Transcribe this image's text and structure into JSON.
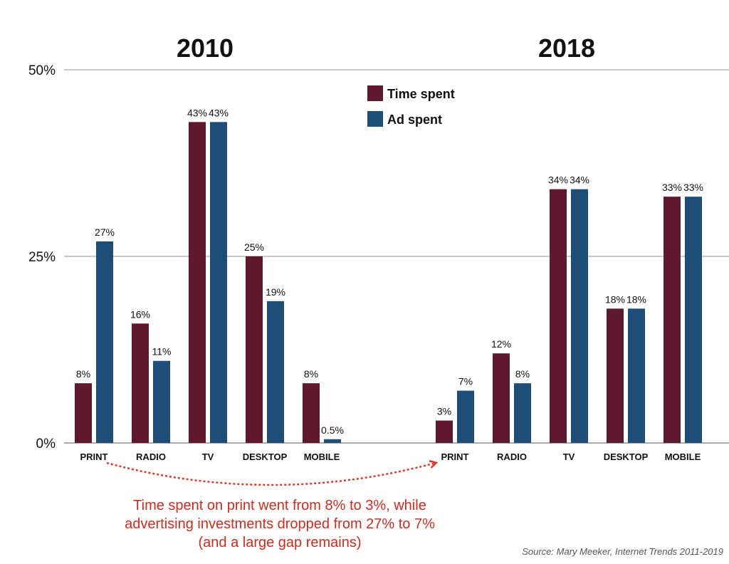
{
  "chart_data": {
    "type": "bar",
    "groups": [
      {
        "title": "2010",
        "categories": [
          "PRINT",
          "RADIO",
          "TV",
          "DESKTOP",
          "MOBILE"
        ],
        "series": [
          {
            "name": "Time spent",
            "values": [
              8,
              16,
              43,
              25,
              8
            ],
            "labels": [
              "8%",
              "16%",
              "43%",
              "25%",
              "8%"
            ]
          },
          {
            "name": "Ad spent",
            "values": [
              27,
              11,
              43,
              19,
              0.5
            ],
            "labels": [
              "27%",
              "11%",
              "43%",
              "19%",
              "0.5%"
            ]
          }
        ]
      },
      {
        "title": "2018",
        "categories": [
          "PRINT",
          "RADIO",
          "TV",
          "DESKTOP",
          "MOBILE"
        ],
        "series": [
          {
            "name": "Time spent",
            "values": [
              3,
              12,
              34,
              18,
              33
            ],
            "labels": [
              "3%",
              "12%",
              "34%",
              "18%",
              "33%"
            ]
          },
          {
            "name": "Ad spent",
            "values": [
              7,
              8,
              34,
              18,
              33
            ],
            "labels": [
              "7%",
              "8%",
              "34%",
              "18%",
              "33%"
            ]
          }
        ]
      }
    ],
    "ylim": [
      0,
      50
    ],
    "yticks": [
      {
        "value": 0,
        "label": "0%"
      },
      {
        "value": 25,
        "label": "25%"
      },
      {
        "value": 50,
        "label": "50%"
      }
    ],
    "grid": true,
    "legend": {
      "placement": "top-center",
      "entries": [
        "Time spent",
        "Ad spent"
      ]
    },
    "series_colors": [
      "#5e1a2c",
      "#1d4e78"
    ],
    "annotation": {
      "lines": [
        "Time spent on print went from 8% to 3%, while",
        "advertising investments dropped from 27% to 7%",
        "(and a large gap remains)"
      ],
      "color": "#c62f22"
    },
    "source": "Source: Mary Meeker, Internet Trends 2011-2019"
  }
}
